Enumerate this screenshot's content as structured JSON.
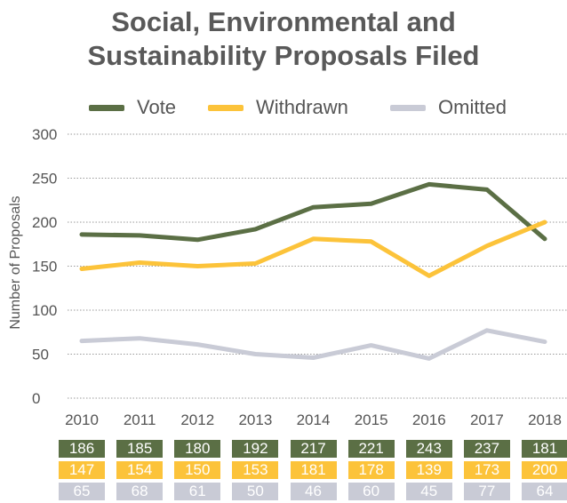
{
  "title_lines": [
    "Social, Environmental and",
    "Sustainability Proposals Filed"
  ],
  "colors": {
    "vote": "#5b6f45",
    "withdrawn": "#fcc33a",
    "omitted": "#c9cbd6",
    "grid": "#9a9a9a",
    "text": "#555555"
  },
  "chart_data": {
    "type": "line",
    "title": "Social, Environmental and Sustainability Proposals Filed",
    "ylabel": "Number of Proposals",
    "xlabel": "",
    "x": [
      "2010",
      "2011",
      "2012",
      "2013",
      "2014",
      "2015",
      "2016",
      "2017",
      "2018"
    ],
    "ylim": [
      0,
      300
    ],
    "yticks": [
      0,
      50,
      100,
      150,
      200,
      250,
      300
    ],
    "grid": "horizontal dotted",
    "legend_position": "top",
    "series": [
      {
        "name": "Vote",
        "key": "vote",
        "values": [
          186,
          185,
          180,
          192,
          217,
          221,
          243,
          237,
          181
        ]
      },
      {
        "name": "Withdrawn",
        "key": "withdrawn",
        "values": [
          147,
          154,
          150,
          153,
          181,
          178,
          139,
          173,
          200
        ]
      },
      {
        "name": "Omitted",
        "key": "omitted",
        "values": [
          65,
          68,
          61,
          50,
          46,
          60,
          45,
          77,
          64
        ]
      }
    ]
  }
}
